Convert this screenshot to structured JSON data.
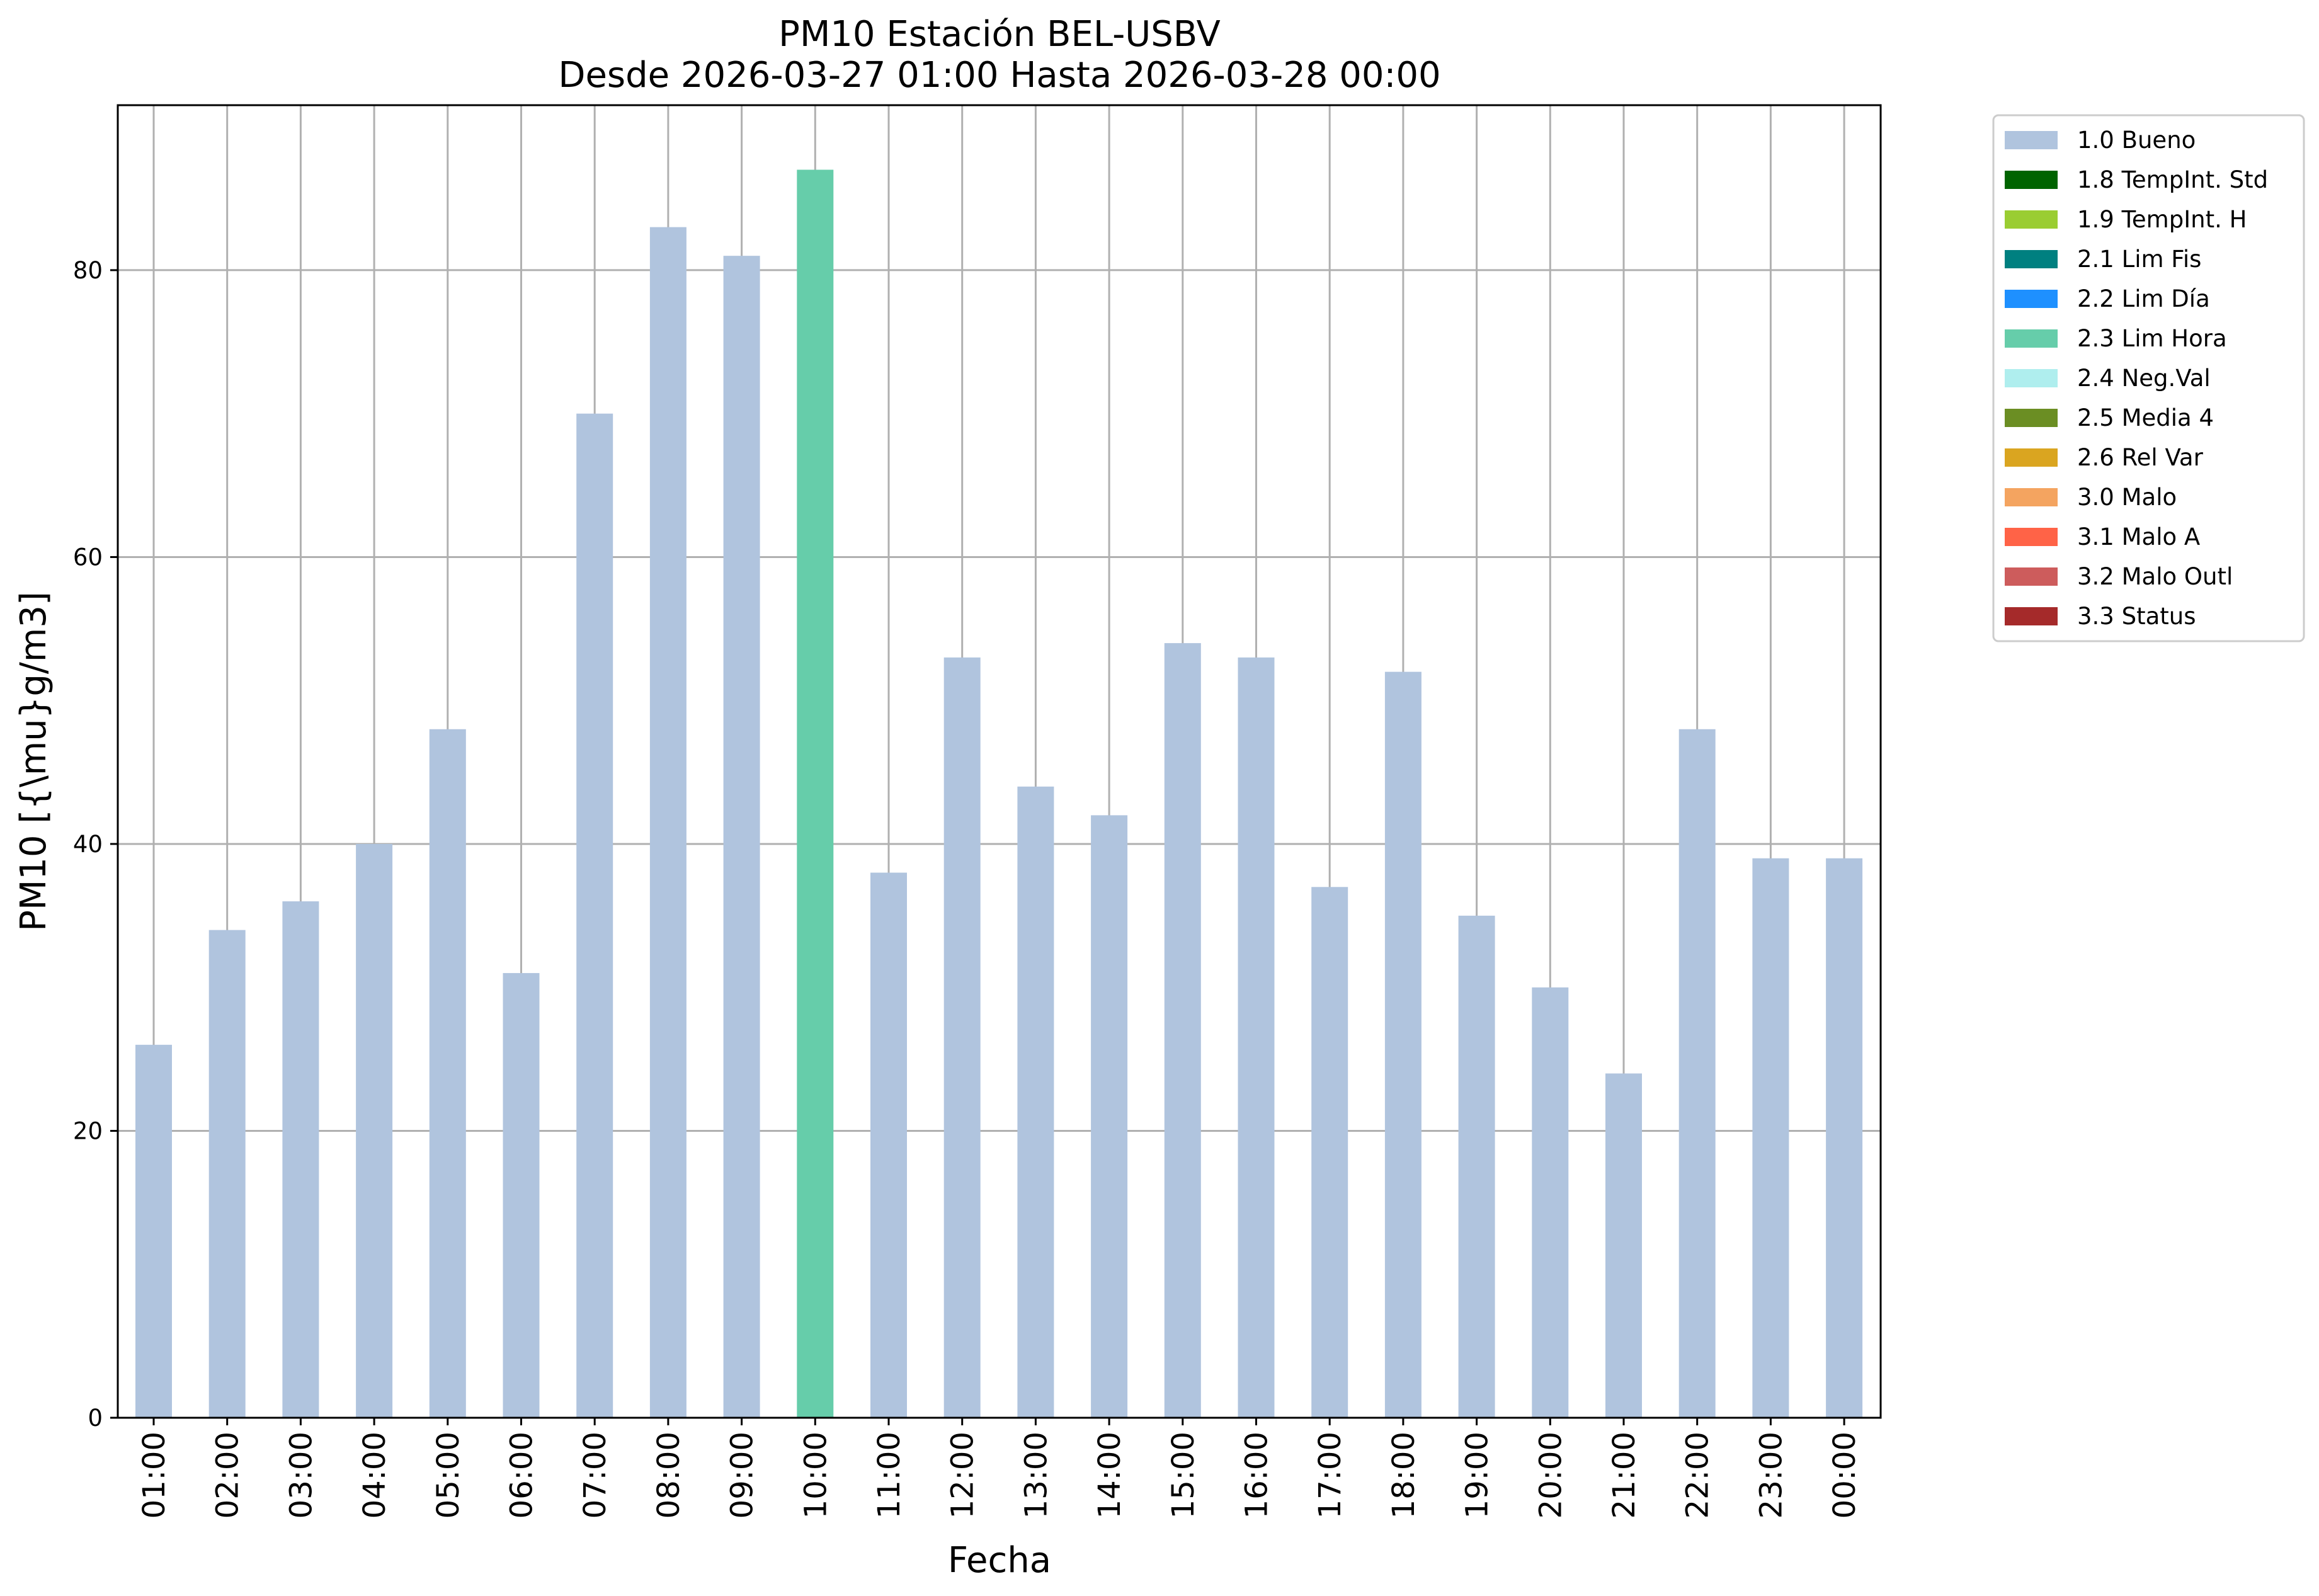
{
  "chart_data": {
    "type": "bar",
    "title": "PM10 Estación BEL-USBV",
    "subtitle": "Desde 2026-03-27 01:00 Hasta 2026-03-28 00:00",
    "xlabel": "Fecha",
    "ylabel": "PM10 [{\\mu}g/m3]",
    "ylim": [
      0,
      91.5
    ],
    "yticks": [
      0,
      20,
      40,
      60,
      80
    ],
    "grid": true,
    "legend_position": "outside-right",
    "categories": [
      "01:00",
      "02:00",
      "03:00",
      "04:00",
      "05:00",
      "06:00",
      "07:00",
      "08:00",
      "09:00",
      "10:00",
      "11:00",
      "12:00",
      "13:00",
      "14:00",
      "15:00",
      "16:00",
      "17:00",
      "18:00",
      "19:00",
      "20:00",
      "21:00",
      "22:00",
      "23:00",
      "00:00"
    ],
    "values": [
      26,
      34,
      36,
      40,
      48,
      31,
      70,
      83,
      81,
      87,
      38,
      53,
      44,
      42,
      54,
      53,
      37,
      52,
      35,
      30,
      24,
      48,
      39,
      39
    ],
    "flags": [
      "1.0 Bueno",
      "1.0 Bueno",
      "1.0 Bueno",
      "1.0 Bueno",
      "1.0 Bueno",
      "1.0 Bueno",
      "1.0 Bueno",
      "1.0 Bueno",
      "1.0 Bueno",
      "2.3 Lim Hora",
      "1.0 Bueno",
      "1.0 Bueno",
      "1.0 Bueno",
      "1.0 Bueno",
      "1.0 Bueno",
      "1.0 Bueno",
      "1.0 Bueno",
      "1.0 Bueno",
      "1.0 Bueno",
      "1.0 Bueno",
      "1.0 Bueno",
      "1.0 Bueno",
      "1.0 Bueno",
      "1.0 Bueno"
    ],
    "legend": [
      {
        "label": "1.0 Bueno",
        "color": "#b0c4de"
      },
      {
        "label": "1.8 TempInt. Std",
        "color": "#006400"
      },
      {
        "label": "1.9 TempInt. H",
        "color": "#9acd32"
      },
      {
        "label": "2.1 Lim Fis",
        "color": "#008080"
      },
      {
        "label": "2.2 Lim Día",
        "color": "#1e90ff"
      },
      {
        "label": "2.3 Lim Hora",
        "color": "#66cdaa"
      },
      {
        "label": "2.4 Neg.Val",
        "color": "#afeeee"
      },
      {
        "label": "2.5 Media 4",
        "color": "#6b8e23"
      },
      {
        "label": "2.6 Rel Var",
        "color": "#daa520"
      },
      {
        "label": "3.0 Malo",
        "color": "#f4a460"
      },
      {
        "label": "3.1 Malo A",
        "color": "#ff6347"
      },
      {
        "label": "3.2 Malo Outl",
        "color": "#cd5c5c"
      },
      {
        "label": "3.3 Status",
        "color": "#a52a2a"
      }
    ]
  }
}
